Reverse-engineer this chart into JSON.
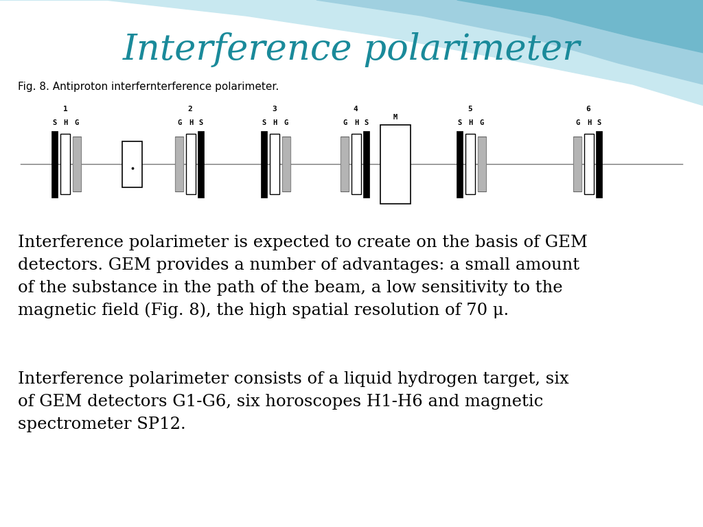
{
  "title": "Interference polarimeter",
  "title_color": "#1a8a9a",
  "fig_caption": "Fig. 8. Antiproton interfernterference polarimeter.",
  "paragraph1": "Interference polarimeter is expected to create on the basis of GEM\ndetectors. GEM provides a number of advantages: a small amount\nof the substance in the path of the beam, a low sensitivity to the\nmagnetic field (Fig. 8), the high spatial resolution of 70 μ.",
  "paragraph2": "Interference polarimeter consists of a liquid hydrogen target, six\nof GEM detectors G1-G6, six horoscopes H1-H6 and magnetic\nspectrometer SP12.",
  "bg_color": "#ffffff",
  "wave_color1": "#c8e8f0",
  "wave_color2": "#a0d0e0",
  "wave_color3": "#70b8cc",
  "text_color": "#000000"
}
